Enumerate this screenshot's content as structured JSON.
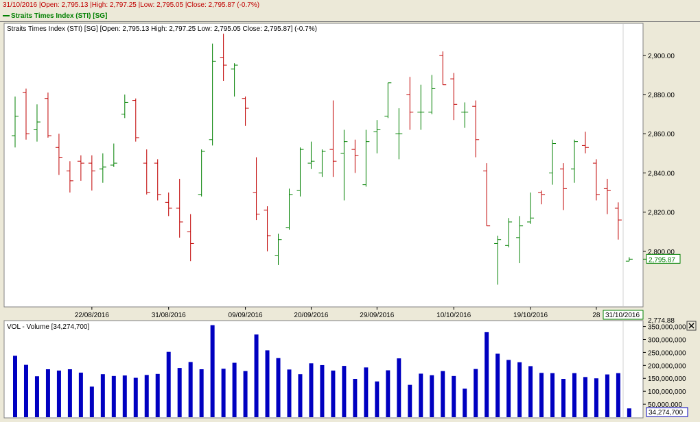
{
  "info_bar": {
    "date": "31/10/2016",
    "open": "|Open: 2,795.13",
    "high": "|High: 2,797.25",
    "low": "|Low: 2,795.05",
    "close": "|Close: 2,795.87 (-0.7%)"
  },
  "legend_bar": {
    "label": "Straits Times Index (STI) [SG]"
  },
  "chart_data": [
    {
      "type": "ohlc",
      "title": "Straits Times Index (STI) [SG] [Open: 2,795.13  High: 2,797.25  Low: 2,795.05  Close: 2,795.87] (-0.7%)",
      "ylim": [
        2772,
        2916
      ],
      "y_ticks": [
        2800,
        2820,
        2840,
        2860,
        2880,
        2900
      ],
      "y_tick_labels": [
        "2,800.00",
        "2,820.00",
        "2,840.00",
        "2,860.00",
        "2,880.00",
        "2,900.00"
      ],
      "x_ticks": [
        {
          "index": 7,
          "label": "22/08/2016"
        },
        {
          "index": 14,
          "label": "31/08/2016"
        },
        {
          "index": 21,
          "label": "09/09/2016"
        },
        {
          "index": 27,
          "label": "20/09/2016"
        },
        {
          "index": 33,
          "label": "29/09/2016"
        },
        {
          "index": 40,
          "label": "10/10/2016"
        },
        {
          "index": 47,
          "label": "19/10/2016"
        },
        {
          "index": 53,
          "label": "28"
        }
      ],
      "last_date_label": "31/10/2016",
      "last_value_label": "2,795.87",
      "axis_bottom_label": "2,774.88",
      "up_color": "#008000",
      "down_color": "#c00000",
      "bars": [
        {
          "o": 2859,
          "h": 2879,
          "l": 2853,
          "c": 2869
        },
        {
          "o": 2881,
          "h": 2883,
          "l": 2857,
          "c": 2860
        },
        {
          "o": 2862,
          "h": 2875,
          "l": 2856,
          "c": 2866
        },
        {
          "o": 2878,
          "h": 2881,
          "l": 2858,
          "c": 2859
        },
        {
          "o": 2853,
          "h": 2860,
          "l": 2839,
          "c": 2848
        },
        {
          "o": 2841,
          "h": 2846,
          "l": 2830,
          "c": 2836
        },
        {
          "o": 2846,
          "h": 2849,
          "l": 2836,
          "c": 2845
        },
        {
          "o": 2845,
          "h": 2849,
          "l": 2831,
          "c": 2841
        },
        {
          "o": 2842,
          "h": 2850,
          "l": 2835,
          "c": 2843
        },
        {
          "o": 2844,
          "h": 2855,
          "l": 2843,
          "c": 2845
        },
        {
          "o": 2870,
          "h": 2880,
          "l": 2868,
          "c": 2876
        },
        {
          "o": 2877,
          "h": 2878,
          "l": 2856,
          "c": 2858
        },
        {
          "o": 2845,
          "h": 2852,
          "l": 2829,
          "c": 2830
        },
        {
          "o": 2845,
          "h": 2847,
          "l": 2826,
          "c": 2829
        },
        {
          "o": 2825,
          "h": 2830,
          "l": 2818,
          "c": 2822
        },
        {
          "o": 2822,
          "h": 2837,
          "l": 2807,
          "c": 2815
        },
        {
          "o": 2810,
          "h": 2819,
          "l": 2795,
          "c": 2804
        },
        {
          "o": 2829,
          "h": 2852,
          "l": 2828,
          "c": 2851
        },
        {
          "o": 2857,
          "h": 2906,
          "l": 2854,
          "c": 2897
        },
        {
          "o": 2899,
          "h": 2911,
          "l": 2887,
          "c": 2895
        },
        {
          "o": 2893,
          "h": 2896,
          "l": 2879,
          "c": 2895
        },
        {
          "o": 2878,
          "h": 2879,
          "l": 2864,
          "c": 2873
        },
        {
          "o": 2830,
          "h": 2848,
          "l": 2816,
          "c": 2819
        },
        {
          "o": 2821,
          "h": 2823,
          "l": 2800,
          "c": 2808
        },
        {
          "o": 2798,
          "h": 2809,
          "l": 2793,
          "c": 2806
        },
        {
          "o": 2812,
          "h": 2832,
          "l": 2811,
          "c": 2829
        },
        {
          "o": 2831,
          "h": 2853,
          "l": 2828,
          "c": 2852
        },
        {
          "o": 2845,
          "h": 2856,
          "l": 2842,
          "c": 2846
        },
        {
          "o": 2840,
          "h": 2852,
          "l": 2838,
          "c": 2851
        },
        {
          "o": 2852,
          "h": 2877,
          "l": 2838,
          "c": 2846
        },
        {
          "o": 2850,
          "h": 2862,
          "l": 2826,
          "c": 2856
        },
        {
          "o": 2852,
          "h": 2857,
          "l": 2840,
          "c": 2849
        },
        {
          "o": 2834,
          "h": 2862,
          "l": 2833,
          "c": 2856
        },
        {
          "o": 2861,
          "h": 2867,
          "l": 2850,
          "c": 2862
        },
        {
          "o": 2869,
          "h": 2886,
          "l": 2868,
          "c": 2886
        },
        {
          "o": 2860,
          "h": 2873,
          "l": 2847,
          "c": 2860
        },
        {
          "o": 2880,
          "h": 2889,
          "l": 2862,
          "c": 2871
        },
        {
          "o": 2871,
          "h": 2885,
          "l": 2862,
          "c": 2871
        },
        {
          "o": 2871,
          "h": 2890,
          "l": 2870,
          "c": 2883
        },
        {
          "o": 2900,
          "h": 2902,
          "l": 2885,
          "c": 2885
        },
        {
          "o": 2888,
          "h": 2891,
          "l": 2867,
          "c": 2875
        },
        {
          "o": 2871,
          "h": 2876,
          "l": 2863,
          "c": 2871
        },
        {
          "o": 2874,
          "h": 2877,
          "l": 2848,
          "c": 2857
        },
        {
          "o": 2841,
          "h": 2845,
          "l": 2813,
          "c": 2813
        },
        {
          "o": 2804,
          "h": 2808,
          "l": 2783,
          "c": 2806
        },
        {
          "o": 2803,
          "h": 2817,
          "l": 2802,
          "c": 2815
        },
        {
          "o": 2807,
          "h": 2818,
          "l": 2794,
          "c": 2813
        },
        {
          "o": 2815,
          "h": 2830,
          "l": 2814,
          "c": 2817
        },
        {
          "o": 2830,
          "h": 2831,
          "l": 2824,
          "c": 2829
        },
        {
          "o": 2840,
          "h": 2857,
          "l": 2834,
          "c": 2855
        },
        {
          "o": 2842,
          "h": 2845,
          "l": 2821,
          "c": 2832
        },
        {
          "o": 2842,
          "h": 2857,
          "l": 2835,
          "c": 2856
        },
        {
          "o": 2854,
          "h": 2861,
          "l": 2850,
          "c": 2853
        },
        {
          "o": 2845,
          "h": 2847,
          "l": 2826,
          "c": 2829
        },
        {
          "o": 2832,
          "h": 2837,
          "l": 2819,
          "c": 2831
        },
        {
          "o": 2822,
          "h": 2825,
          "l": 2806,
          "c": 2816
        },
        {
          "o": 2795,
          "h": 2797,
          "l": 2795,
          "c": 2796
        }
      ]
    },
    {
      "type": "bar",
      "title": "VOL - Volume [34,274,700]",
      "ylim": [
        0,
        370000000
      ],
      "y_ticks": [
        50000000,
        100000000,
        150000000,
        200000000,
        250000000,
        300000000,
        350000000
      ],
      "y_tick_labels": [
        "50,000,000",
        "100,000,000",
        "150,000,000",
        "200,000,000",
        "250,000,000",
        "300,000,000",
        "350,000,000"
      ],
      "last_value_label": "34,274,700",
      "bar_color": "#0000c0",
      "values": [
        237,
        202,
        158,
        185,
        180,
        185,
        172,
        118,
        166,
        159,
        161,
        152,
        163,
        167,
        252,
        190,
        213,
        185,
        355,
        187,
        210,
        178,
        319,
        258,
        228,
        184,
        166,
        208,
        201,
        180,
        198,
        148,
        192,
        138,
        181,
        227,
        125,
        168,
        162,
        178,
        159,
        110,
        186,
        328,
        245,
        221,
        212,
        197,
        171,
        170,
        148,
        170,
        155,
        150,
        165,
        170,
        34
      ]
    }
  ]
}
